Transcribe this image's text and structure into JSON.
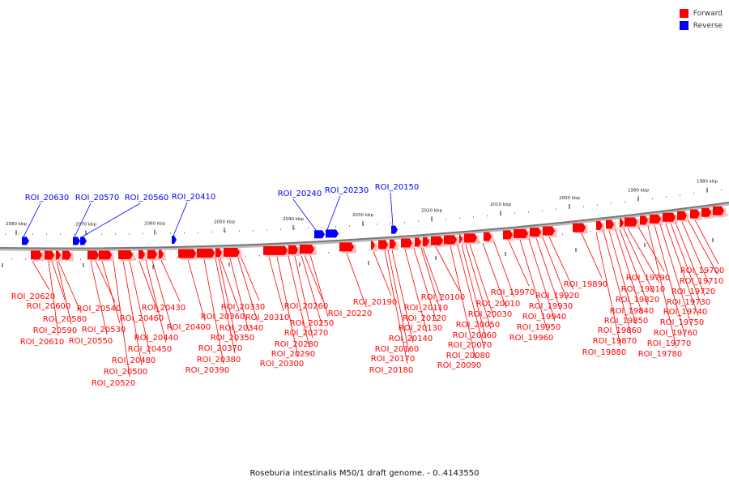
{
  "legend": {
    "forward": {
      "label": "Forward",
      "color": "#ff0000"
    },
    "reverse": {
      "label": "Reverse",
      "color": "#0000ff"
    }
  },
  "caption": "Roseburia intestinalis M50/1 draft genome. - 0..4143550",
  "axis": {
    "unit": "kbp",
    "ticks": [
      {
        "kbp": 2080,
        "label": "2080 kbp"
      },
      {
        "kbp": 2070,
        "label": "2070 kbp"
      },
      {
        "kbp": 2060,
        "label": "2060 kbp"
      },
      {
        "kbp": 2050,
        "label": "2050 kbp"
      },
      {
        "kbp": 2040,
        "label": "2040 kbp"
      },
      {
        "kbp": 2030,
        "label": "2030 kbp"
      },
      {
        "kbp": 2020,
        "label": "2020 kbp"
      },
      {
        "kbp": 2010,
        "label": "2010 kbp"
      },
      {
        "kbp": 2000,
        "label": "2000 kbp"
      },
      {
        "kbp": 1990,
        "label": "1990 kbp"
      },
      {
        "kbp": 1980,
        "label": "1980 kbp"
      }
    ]
  },
  "genes": {
    "reverse": [
      {
        "id": "ROI_20630"
      },
      {
        "id": "ROI_20570"
      },
      {
        "id": "ROI_20560"
      },
      {
        "id": "ROI_20410"
      },
      {
        "id": "ROI_20240"
      },
      {
        "id": "ROI_20230"
      },
      {
        "id": "ROI_20150"
      }
    ],
    "forward": [
      {
        "id": "ROI_20620"
      },
      {
        "id": "ROI_20610"
      },
      {
        "id": "ROI_20600"
      },
      {
        "id": "ROI_20590"
      },
      {
        "id": "ROI_20580"
      },
      {
        "id": "ROI_20550"
      },
      {
        "id": "ROI_20540"
      },
      {
        "id": "ROI_20530"
      },
      {
        "id": "ROI_20520"
      },
      {
        "id": "ROI_20500"
      },
      {
        "id": "ROI_20480"
      },
      {
        "id": "ROI_20460"
      },
      {
        "id": "ROI_20450"
      },
      {
        "id": "ROI_20440"
      },
      {
        "id": "ROI_20430"
      },
      {
        "id": "ROI_20400"
      },
      {
        "id": "ROI_20390"
      },
      {
        "id": "ROI_20380"
      },
      {
        "id": "ROI_20370"
      },
      {
        "id": "ROI_20360"
      },
      {
        "id": "ROI_20350"
      },
      {
        "id": "ROI_20340"
      },
      {
        "id": "ROI_20330"
      },
      {
        "id": "ROI_20310"
      },
      {
        "id": "ROI_20300"
      },
      {
        "id": "ROI_20290"
      },
      {
        "id": "ROI_20280"
      },
      {
        "id": "ROI_20270"
      },
      {
        "id": "ROI_20260"
      },
      {
        "id": "ROI_20250"
      },
      {
        "id": "ROI_20220"
      },
      {
        "id": "ROI_20190"
      },
      {
        "id": "ROI_20180"
      },
      {
        "id": "ROI_20170"
      },
      {
        "id": "ROI_20160"
      },
      {
        "id": "ROI_20140"
      },
      {
        "id": "ROI_20130"
      },
      {
        "id": "ROI_20120"
      },
      {
        "id": "ROI_20110"
      },
      {
        "id": "ROI_20100"
      },
      {
        "id": "ROI_20090"
      },
      {
        "id": "ROI_20080"
      },
      {
        "id": "ROI_20070"
      },
      {
        "id": "ROI_20060"
      },
      {
        "id": "ROI_20050"
      },
      {
        "id": "ROI_20030"
      },
      {
        "id": "ROI_20010"
      },
      {
        "id": "ROI_19970"
      },
      {
        "id": "ROI_19960"
      },
      {
        "id": "ROI_19950"
      },
      {
        "id": "ROI_19940"
      },
      {
        "id": "ROI_19930"
      },
      {
        "id": "ROI_19920"
      },
      {
        "id": "ROI_19890"
      },
      {
        "id": "ROI_19880"
      },
      {
        "id": "ROI_19870"
      },
      {
        "id": "ROI_19860"
      },
      {
        "id": "ROI_19850"
      },
      {
        "id": "ROI_19840"
      },
      {
        "id": "ROI_19820"
      },
      {
        "id": "ROI_19810"
      },
      {
        "id": "ROI_19790"
      },
      {
        "id": "ROI_19780"
      },
      {
        "id": "ROI_19770"
      },
      {
        "id": "ROI_19760"
      },
      {
        "id": "ROI_19750"
      },
      {
        "id": "ROI_19740"
      },
      {
        "id": "ROI_19730"
      },
      {
        "id": "ROI_19720"
      },
      {
        "id": "ROI_19710"
      },
      {
        "id": "ROI_19700"
      }
    ]
  }
}
